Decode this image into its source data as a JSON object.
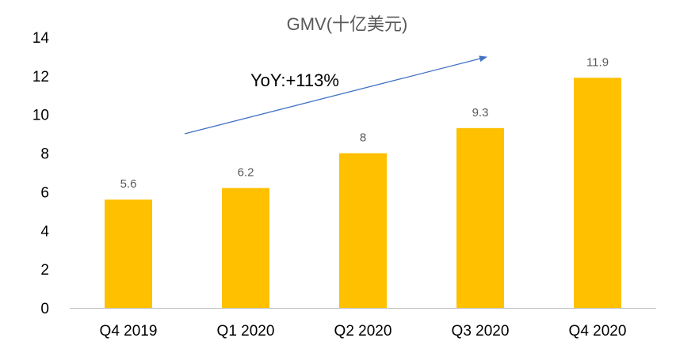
{
  "chart_data": {
    "type": "bar",
    "title": "GMV(十亿美元)",
    "categories": [
      "Q4 2019",
      "Q1 2020",
      "Q2 2020",
      "Q3 2020",
      "Q4 2020"
    ],
    "values": [
      5.6,
      6.2,
      8,
      9.3,
      11.9
    ],
    "data_labels": [
      "5.6",
      "6.2",
      "8",
      "9.3",
      "11.9"
    ],
    "ylim": [
      0,
      14
    ],
    "yticks": [
      "0",
      "2",
      "4",
      "6",
      "8",
      "10",
      "12",
      "14"
    ],
    "grid": false,
    "legend": "none",
    "bar_color": "#FFC000",
    "axis_color": "#BFBFBF",
    "annotation": {
      "text": "YoY:+113%",
      "arrow_color": "#4472C4"
    }
  }
}
